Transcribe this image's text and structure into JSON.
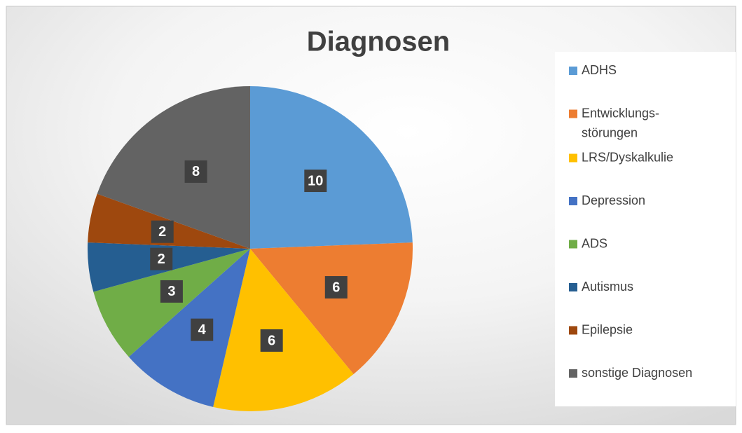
{
  "chart_data": {
    "type": "pie",
    "title": "Diagnosen",
    "categories": [
      "ADHS",
      "Entwicklungs-störungen",
      "LRS/Dyskalkulie",
      "Depression",
      "ADS",
      "Autismus",
      "Epilepsie",
      "sonstige Diagnosen"
    ],
    "values": [
      10,
      6,
      6,
      4,
      3,
      2,
      2,
      8
    ],
    "colors": [
      "#5b9bd5",
      "#ed7d31",
      "#ffc000",
      "#4472c4",
      "#70ad47",
      "#255e91",
      "#9e480e",
      "#636363"
    ],
    "legend": "right"
  }
}
